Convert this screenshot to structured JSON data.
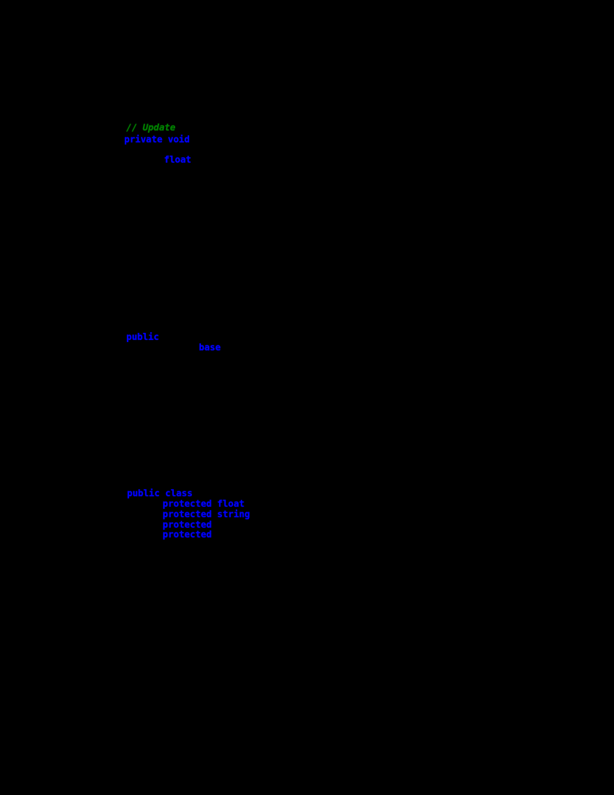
{
  "palette": {
    "background": "#000000",
    "keyword_blue": "#0000ff",
    "comment_green": "#008000"
  },
  "code_listing": {
    "fragments": [
      {
        "text": "// Update",
        "role": "comment"
      },
      {
        "text": "private void",
        "role": "keyword"
      },
      {
        "text": "float",
        "role": "keyword"
      },
      {
        "text": "public",
        "role": "keyword"
      },
      {
        "text": "base",
        "role": "keyword"
      },
      {
        "text": "public class",
        "role": "keyword"
      },
      {
        "text": "protected float",
        "role": "keyword"
      },
      {
        "text": "protected string",
        "role": "keyword"
      },
      {
        "text": "protected",
        "role": "keyword"
      },
      {
        "text": "protected",
        "role": "keyword"
      }
    ]
  }
}
